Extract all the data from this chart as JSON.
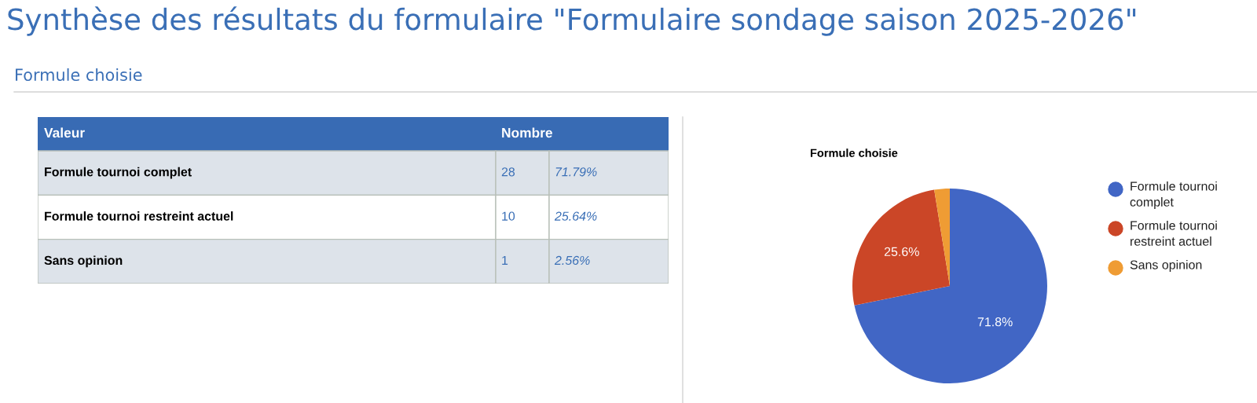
{
  "chart_data": [
    {
      "type": "other",
      "title": "Synthèse des résultats du formulaire \"Formulaire sondage saison 2025-2026\"",
      "subtitle": "Formule choisie",
      "xlabel": "Valeur",
      "ylabel": "Nombre",
      "categories": [
        "Formule tournoi complet",
        "Formule tournoi restreint actuel",
        "Sans opinion"
      ],
      "values": [
        28,
        10,
        1
      ],
      "colors": [
        "#dde3ea",
        "#ffffff",
        "#dde3ea"
      ],
      "data_labels": true,
      "annotations": [
        "71.79%",
        "25.64%",
        "2.56%"
      ]
    },
    {
      "type": "pie",
      "title": "Formule choisie",
      "categories": [
        "Formule tournoi complet",
        "Formule tournoi restreint actuel",
        "Sans opinion"
      ],
      "values": [
        71.79,
        25.64,
        2.56
      ],
      "colors": [
        "#4166c5",
        "#cb4627",
        "#ef9c34"
      ],
      "value_labels": [
        "71.8%",
        "25.6%",
        null
      ],
      "legend": "right"
    }
  ]
}
